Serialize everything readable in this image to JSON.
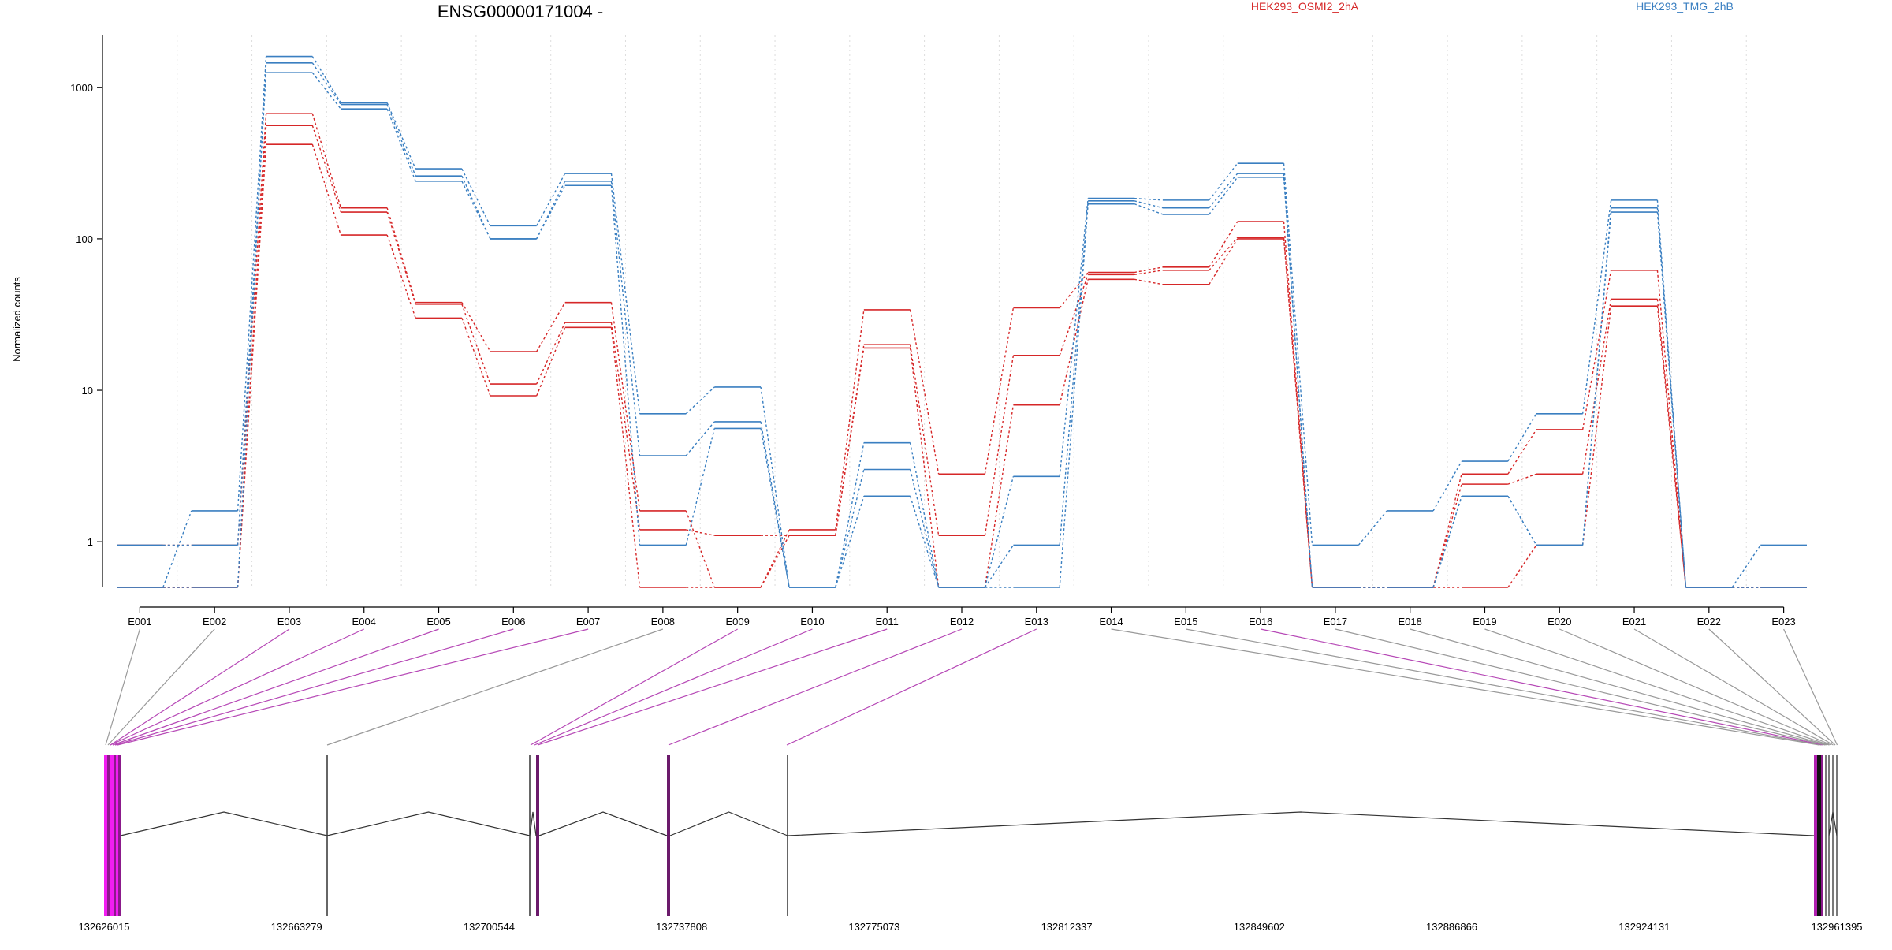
{
  "chart_data": {
    "type": "line",
    "title": "ENSG00000171004 -",
    "ylabel": "Normalized counts",
    "yscale": "log",
    "ylim": [
      0.5,
      2200
    ],
    "yticks": [
      1,
      10,
      100,
      1000
    ],
    "yticklabels": [
      "1",
      "10",
      "100",
      "1000"
    ],
    "categories": [
      "E001",
      "E002",
      "E003",
      "E004",
      "E005",
      "E006",
      "E007",
      "E008",
      "E009",
      "E010",
      "E011",
      "E012",
      "E013",
      "E014",
      "E015",
      "E016",
      "E017",
      "E018",
      "E019",
      "E020",
      "E021",
      "E022",
      "E023"
    ],
    "legend": [
      {
        "name": "HEK293_OSMI2_2hA",
        "color": "#d62728"
      },
      {
        "name": "HEK293_TMG_2hB",
        "color": "#3a7fc1"
      }
    ],
    "series": [
      {
        "group": "HEK293_OSMI2_2hA",
        "color": "#d62728",
        "values": [
          0.95,
          0.95,
          670,
          160,
          38,
          18,
          38,
          1.6,
          0.5,
          1.2,
          34,
          2.8,
          35,
          60,
          65,
          130,
          0.5,
          0.5,
          2.8,
          5.5,
          62,
          0.5,
          0.5
        ]
      },
      {
        "group": "HEK293_OSMI2_2hA",
        "color": "#d62728",
        "values": [
          0.5,
          0.5,
          560,
          150,
          37,
          11,
          28,
          1.2,
          1.1,
          1.1,
          20,
          1.1,
          17,
          58,
          62,
          102,
          0.5,
          0.5,
          2.4,
          2.8,
          40,
          0.5,
          0.5
        ]
      },
      {
        "group": "HEK293_OSMI2_2hA",
        "color": "#d62728",
        "values": [
          0.5,
          0.5,
          420,
          106,
          30,
          9.2,
          26,
          0.5,
          0.5,
          1.1,
          19,
          0.5,
          8,
          54,
          50,
          100,
          0.5,
          0.5,
          0.5,
          0.95,
          36,
          0.5,
          0.5
        ]
      },
      {
        "group": "HEK293_TMG_2hB",
        "color": "#3a7fc1",
        "values": [
          0.5,
          1.6,
          1600,
          790,
          290,
          122,
          270,
          7,
          10.5,
          0.5,
          4.5,
          0.5,
          2.7,
          185,
          180,
          315,
          0.95,
          1.6,
          3.4,
          7,
          180,
          0.5,
          0.95
        ]
      },
      {
        "group": "HEK293_TMG_2hB",
        "color": "#3a7fc1",
        "values": [
          0.5,
          0.5,
          1450,
          770,
          260,
          100,
          240,
          3.7,
          6.2,
          0.5,
          3,
          0.5,
          0.95,
          178,
          160,
          270,
          0.5,
          0.5,
          2,
          0.95,
          160,
          0.5,
          0.5
        ]
      },
      {
        "group": "HEK293_TMG_2hB",
        "color": "#3a7fc1",
        "values": [
          0.95,
          0.95,
          1250,
          720,
          240,
          100,
          225,
          0.95,
          5.6,
          0.5,
          2,
          0.5,
          0.5,
          170,
          145,
          255,
          0.5,
          0.5,
          2,
          0.95,
          150,
          0.5,
          0.5
        ]
      }
    ],
    "genomic_axis": {
      "tick_labels": [
        "132626015",
        "132663279",
        "132700544",
        "132737808",
        "132775073",
        "132812337",
        "132849602",
        "132886866",
        "132924131",
        "132961395"
      ]
    }
  }
}
